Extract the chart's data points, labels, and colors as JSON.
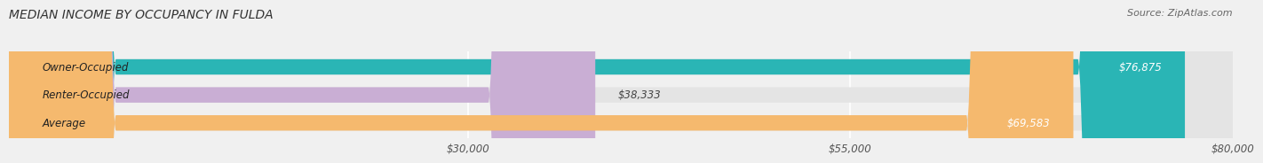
{
  "title": "MEDIAN INCOME BY OCCUPANCY IN FULDA",
  "source": "Source: ZipAtlas.com",
  "categories": [
    "Owner-Occupied",
    "Renter-Occupied",
    "Average"
  ],
  "values": [
    76875,
    38333,
    69583
  ],
  "bar_colors": [
    "#2ab5b5",
    "#c9aed4",
    "#f5b96e"
  ],
  "bar_labels": [
    "$76,875",
    "$38,333",
    "$69,583"
  ],
  "label_inside": [
    true,
    false,
    true
  ],
  "xlim": [
    0,
    80000
  ],
  "xticks": [
    30000,
    55000,
    80000
  ],
  "xtick_labels": [
    "$30,000",
    "$55,000",
    "$80,000"
  ],
  "background_color": "#f0f0f0",
  "bar_bg_color": "#e4e4e4",
  "title_fontsize": 10,
  "source_fontsize": 8,
  "label_fontsize": 8.5,
  "tick_fontsize": 8.5
}
